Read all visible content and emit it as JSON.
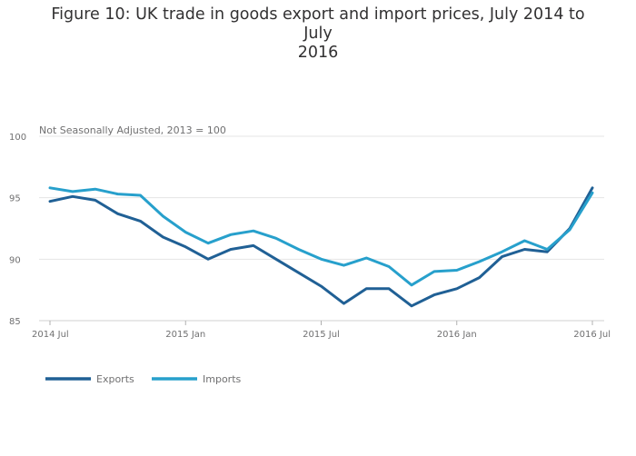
{
  "chart_data": {
    "type": "line",
    "title": "Figure 10: UK trade in goods export and import prices, July 2014 to July 2016",
    "title_line1": "Figure 10: UK trade in goods export and import prices, July 2014 to July",
    "title_line2": "2016",
    "subtitle": "Not Seasonally Adjusted, 2013 = 100",
    "xlabel": "",
    "ylabel": "",
    "ylim": [
      85,
      100
    ],
    "yticks": [
      85,
      90,
      95,
      100
    ],
    "ytick_labels": [
      "85",
      "90",
      "95",
      "100"
    ],
    "xtick_labels": [
      "2014 Jul",
      "2015 Jan",
      "2015 Jul",
      "2016 Jan",
      "2016 Jul"
    ],
    "xtick_index": [
      0,
      6,
      12,
      18,
      24
    ],
    "x": [
      "2014 Jul",
      "2014 Aug",
      "2014 Sep",
      "2014 Oct",
      "2014 Nov",
      "2014 Dec",
      "2015 Jan",
      "2015 Feb",
      "2015 Mar",
      "2015 Apr",
      "2015 May",
      "2015 Jun",
      "2015 Jul",
      "2015 Aug",
      "2015 Sep",
      "2015 Oct",
      "2015 Nov",
      "2015 Dec",
      "2016 Jan",
      "2016 Feb",
      "2016 Mar",
      "2016 Apr",
      "2016 May",
      "2016 Jun",
      "2016 Jul"
    ],
    "grid": true,
    "legend_position": "bottom-left",
    "series": [
      {
        "name": "Exports",
        "color": "#206095",
        "values": [
          94.7,
          95.1,
          94.8,
          93.7,
          93.1,
          91.8,
          91.0,
          90.0,
          90.8,
          91.1,
          90.0,
          88.9,
          87.8,
          86.4,
          87.6,
          87.6,
          86.2,
          87.1,
          87.6,
          88.5,
          90.2,
          90.8,
          90.6,
          92.5,
          95.8
        ]
      },
      {
        "name": "Imports",
        "color": "#27a0cc",
        "values": [
          95.8,
          95.5,
          95.7,
          95.3,
          95.2,
          93.5,
          92.2,
          91.3,
          92.0,
          92.3,
          91.7,
          90.8,
          90.0,
          89.5,
          90.1,
          89.4,
          87.9,
          89.0,
          89.1,
          89.8,
          90.6,
          91.5,
          90.8,
          92.4,
          95.4
        ]
      }
    ]
  }
}
